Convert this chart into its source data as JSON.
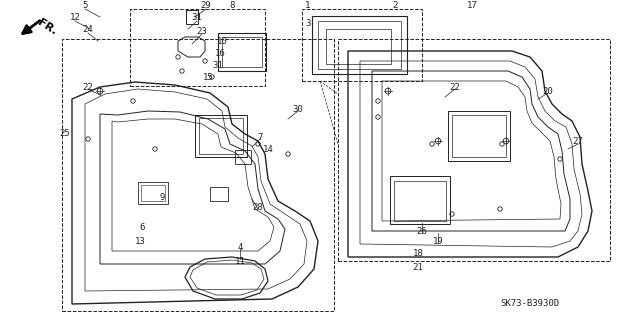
{
  "bg_color": "#ffffff",
  "line_color": "#222222",
  "diagram_code": "SK73-B3930D",
  "fr_label": "FR.",
  "label_fontsize": 6.5
}
